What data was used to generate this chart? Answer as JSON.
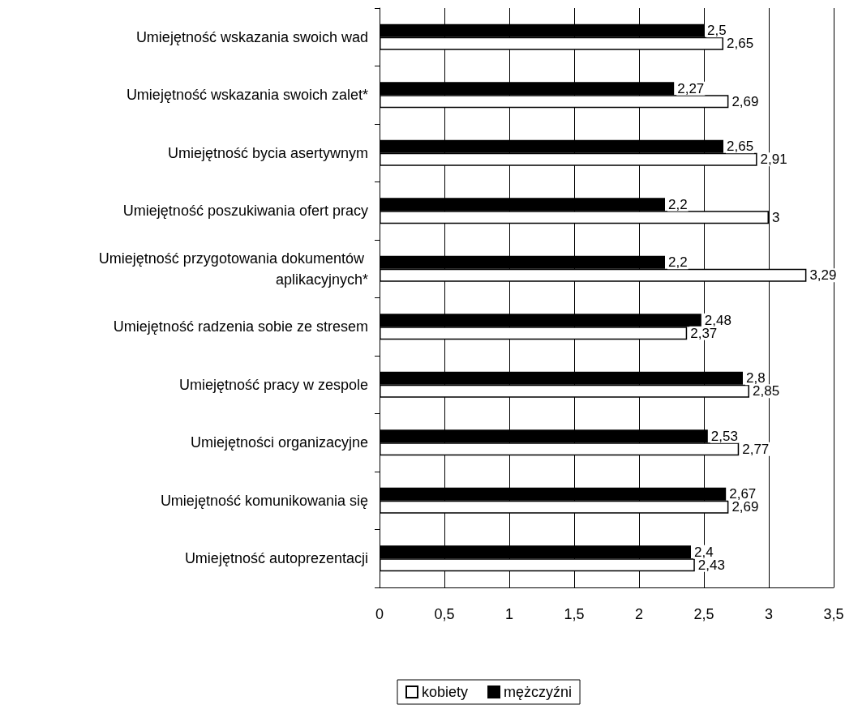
{
  "chart_data": {
    "type": "bar",
    "orientation": "horizontal",
    "categories": [
      "Umiejętność wskazania swoich wad",
      "Umiejętność wskazania swoich zalet*",
      "Umiejętność bycia asertywnym",
      "Umiejętność poszukiwania ofert pracy",
      "Umiejętność przygotowania dokumentów aplikacyjnych*",
      "Umiejętność radzenia sobie ze stresem",
      "Umiejętność pracy w zespole",
      "Umiejętności organizacyjne",
      "Umiejętność komunikowania się",
      "Umiejętność autoprezentacji"
    ],
    "series": [
      {
        "name": "mężczyźni",
        "color": "#000000",
        "values": [
          2.5,
          2.27,
          2.65,
          2.2,
          2.2,
          2.48,
          2.8,
          2.53,
          2.67,
          2.4
        ],
        "value_labels": [
          "2,5",
          "2,27",
          "2,65",
          "2,2",
          "2,2",
          "2,48",
          "2,8",
          "2,53",
          "2,67",
          "2,4"
        ]
      },
      {
        "name": "kobiety",
        "color": "#ffffff",
        "values": [
          2.65,
          2.69,
          2.91,
          3,
          3.29,
          2.37,
          2.85,
          2.77,
          2.69,
          2.43
        ],
        "value_labels": [
          "2,65",
          "2,69",
          "2,91",
          "3",
          "3,29",
          "2,37",
          "2,85",
          "2,77",
          "2,69",
          "2,43"
        ]
      }
    ],
    "xlim": [
      0,
      3.5
    ],
    "xticks": [
      0,
      {
        "value": 0.5,
        "label": "0,5"
      },
      1,
      {
        "value": 1.5,
        "label": "1,5"
      },
      2,
      {
        "value": 2.5,
        "label": "2,5"
      },
      3,
      {
        "value": 3.5,
        "label": "3,5"
      }
    ],
    "grid": "x",
    "legend": "bottom"
  }
}
